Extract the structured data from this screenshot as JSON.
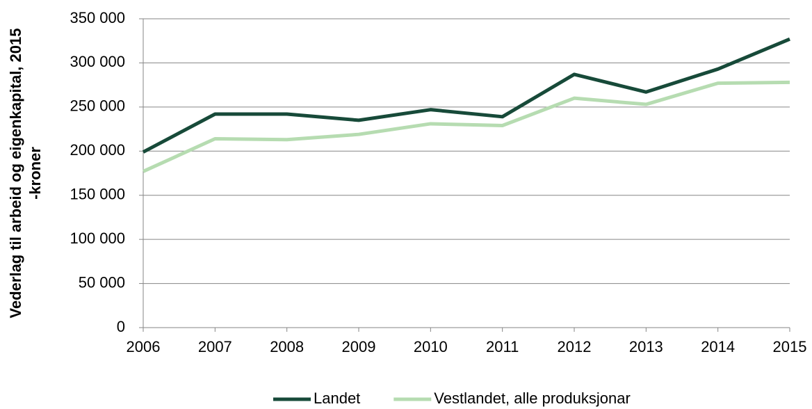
{
  "chart_data": {
    "type": "line",
    "ylabel": [
      "Vederlag til arbeid og eigenkapital, 2015",
      "-kroner"
    ],
    "categories": [
      "2006",
      "2007",
      "2008",
      "2009",
      "2010",
      "2011",
      "2012",
      "2013",
      "2014",
      "2015"
    ],
    "series": [
      {
        "name": "Landet",
        "color": "#174a39",
        "values": [
          199000,
          242000,
          242000,
          235000,
          247000,
          239000,
          287000,
          267000,
          293000,
          327000
        ]
      },
      {
        "name": "Vestlandet, alle produksjonar",
        "color": "#b6dcb1",
        "values": [
          177000,
          214000,
          213000,
          219000,
          231000,
          229000,
          260000,
          253000,
          277000,
          278000
        ]
      }
    ],
    "ylim": [
      0,
      350000
    ],
    "yticks": [
      0,
      {
        "value": 50000,
        "label": "50 000"
      },
      {
        "value": 100000,
        "label": "100 000"
      },
      {
        "value": 150000,
        "label": "150 000"
      },
      {
        "value": 200000,
        "label": "200 000"
      },
      {
        "value": 250000,
        "label": "250 000"
      },
      {
        "value": 300000,
        "label": "300 000"
      },
      {
        "value": 350000,
        "label": "350 000"
      }
    ],
    "grid": true,
    "legend": "bottom"
  }
}
